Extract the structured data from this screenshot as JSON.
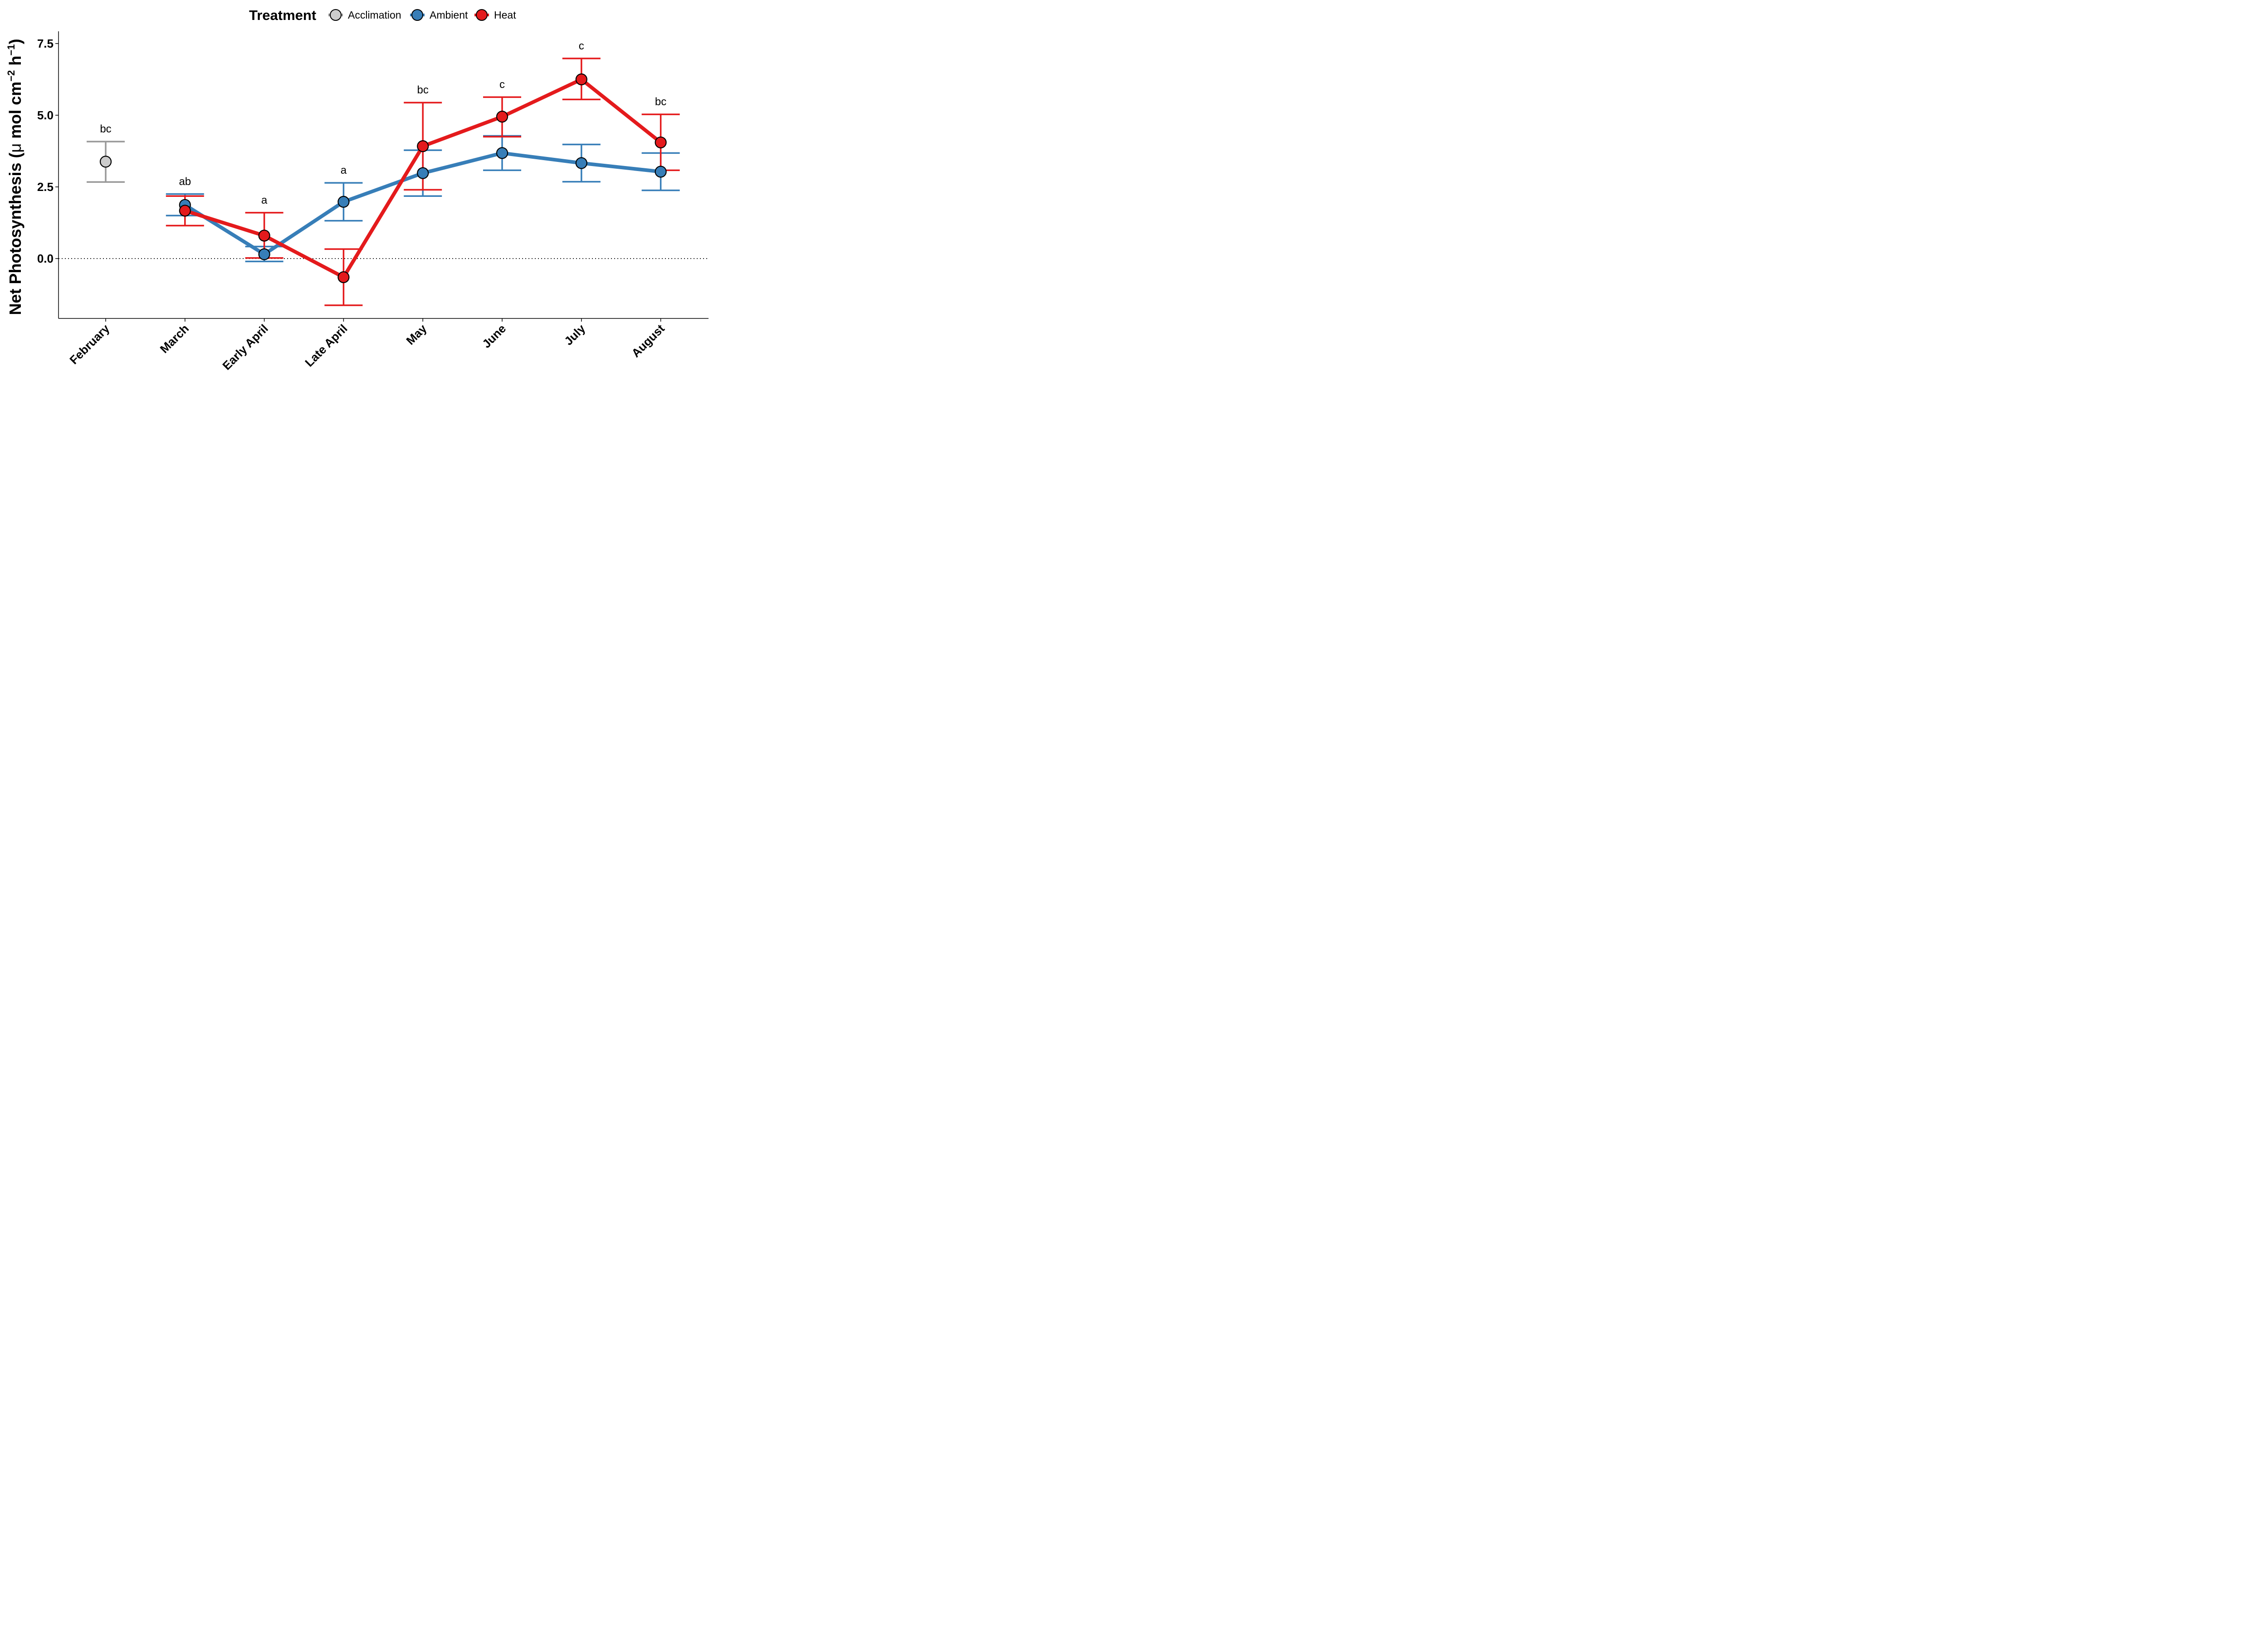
{
  "chart_data": {
    "type": "line",
    "ylabel": "Net Photosynthesis (μ mol cm⁻² h⁻¹)",
    "ylabel_parts": [
      "Net Photosynthesis (",
      "μ",
      " mol cm",
      "−2",
      " h",
      "−1",
      ")"
    ],
    "ylim": [
      -2.0,
      7.9
    ],
    "yticks": [
      {
        "value": 0.0,
        "label": "0.0"
      },
      {
        "value": 2.5,
        "label": "2.5"
      },
      {
        "value": 5.0,
        "label": "5.0"
      },
      {
        "value": 7.5,
        "label": "7.5"
      }
    ],
    "categories": [
      "February",
      "March",
      "Early April",
      "Late April",
      "May",
      "June",
      "July",
      "August"
    ],
    "reference_line": 0,
    "legend": {
      "title": "Treatment",
      "position": "top",
      "entries": [
        "Acclimation",
        "Ambient",
        "Heat"
      ]
    },
    "series": [
      {
        "name": "Acclimation",
        "color": "#999999",
        "fill": "#cccccc",
        "points": [
          {
            "category": "February",
            "y": 3.38,
            "low": 2.67,
            "high": 4.08
          }
        ]
      },
      {
        "name": "Ambient",
        "color": "#377eb8",
        "fill": "#377eb8",
        "points": [
          {
            "category": "March",
            "y": 1.87,
            "low": 1.5,
            "high": 2.25
          },
          {
            "category": "Early April",
            "y": 0.15,
            "low": -0.1,
            "high": 0.42
          },
          {
            "category": "Late April",
            "y": 1.98,
            "low": 1.32,
            "high": 2.64
          },
          {
            "category": "May",
            "y": 2.98,
            "low": 2.18,
            "high": 3.78
          },
          {
            "category": "June",
            "y": 3.68,
            "low": 3.08,
            "high": 4.28
          },
          {
            "category": "July",
            "y": 3.33,
            "low": 2.68,
            "high": 3.98
          },
          {
            "category": "August",
            "y": 3.03,
            "low": 2.38,
            "high": 3.68
          }
        ]
      },
      {
        "name": "Heat",
        "color": "#e41a1c",
        "fill": "#e41a1c",
        "points": [
          {
            "category": "March",
            "y": 1.67,
            "low": 1.15,
            "high": 2.18
          },
          {
            "category": "Early April",
            "y": 0.8,
            "low": 0.02,
            "high": 1.6
          },
          {
            "category": "Late April",
            "y": -0.65,
            "low": -1.63,
            "high": 0.33
          },
          {
            "category": "May",
            "y": 3.92,
            "low": 2.4,
            "high": 5.44
          },
          {
            "category": "June",
            "y": 4.95,
            "low": 4.25,
            "high": 5.63
          },
          {
            "category": "July",
            "y": 6.25,
            "low": 5.55,
            "high": 6.98
          },
          {
            "category": "August",
            "y": 4.05,
            "low": 3.08,
            "high": 5.03
          }
        ]
      }
    ],
    "annotations": [
      {
        "category": "February",
        "text": "bc",
        "y": 4.08
      },
      {
        "category": "March",
        "text": "ab",
        "y": 2.25
      },
      {
        "category": "Early April",
        "text": "a",
        "y": 1.6
      },
      {
        "category": "Late April",
        "text": "a",
        "y": 2.64
      },
      {
        "category": "May",
        "text": "bc",
        "y": 5.44
      },
      {
        "category": "June",
        "text": "c",
        "y": 5.63
      },
      {
        "category": "July",
        "text": "c",
        "y": 6.98
      },
      {
        "category": "August",
        "text": "bc",
        "y": 5.03
      }
    ]
  }
}
